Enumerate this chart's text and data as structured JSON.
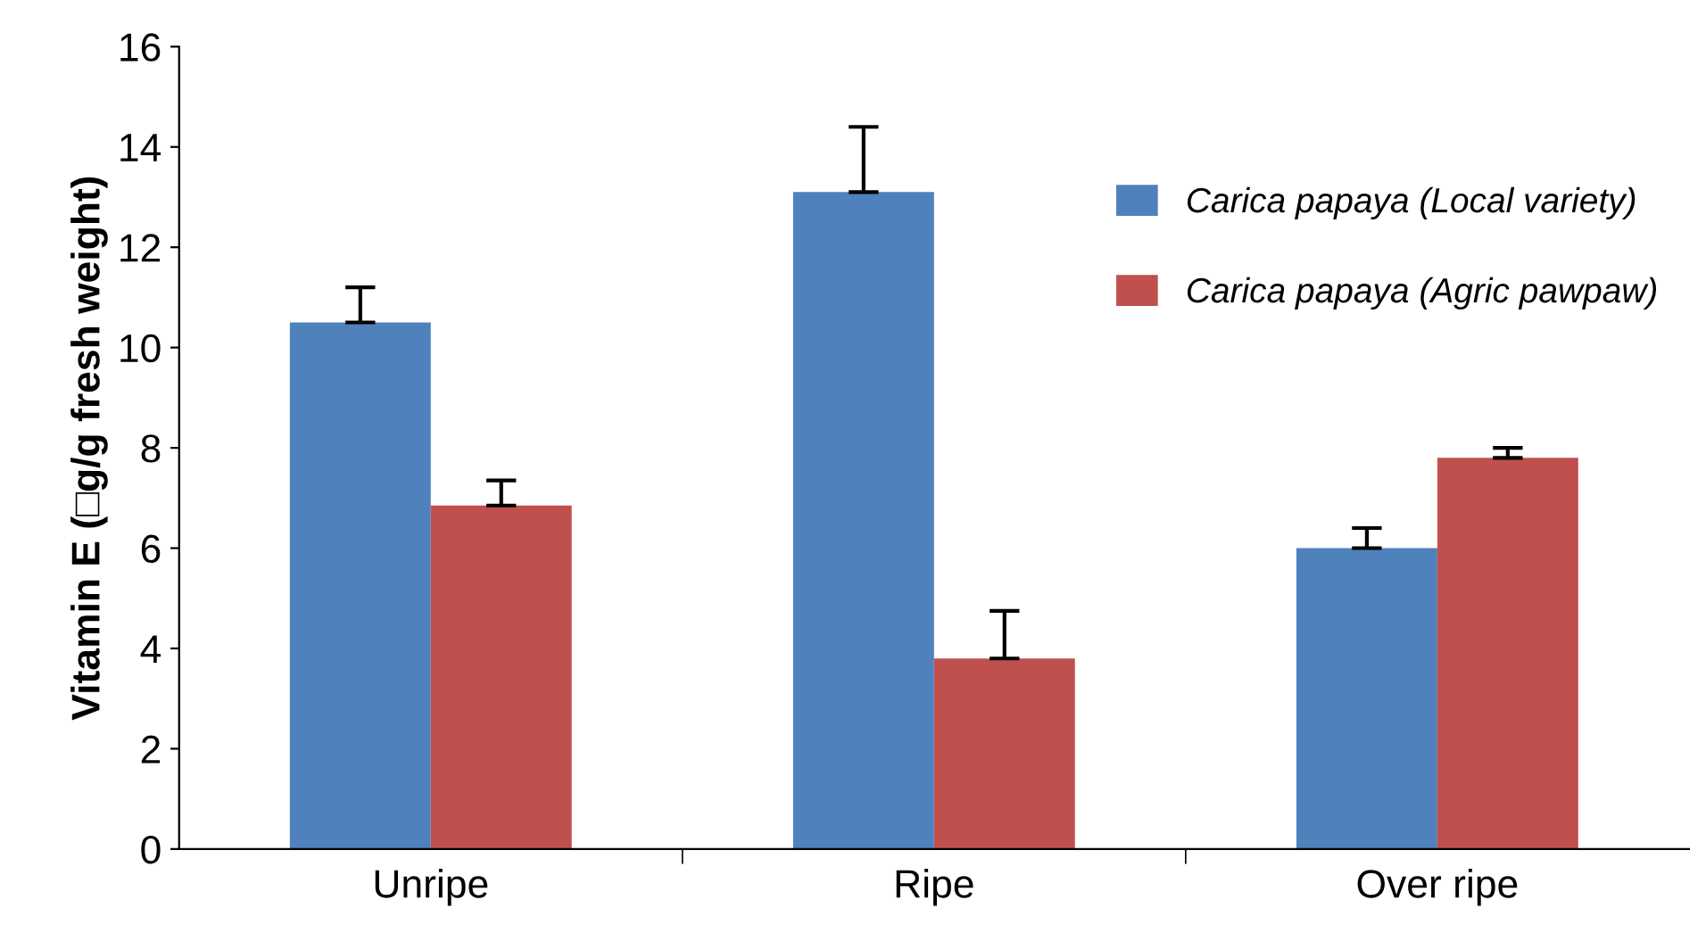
{
  "chart_data": {
    "type": "bar",
    "ylabel": "Vitamin E (□g/g fresh weight)",
    "categories": [
      "Unripe",
      "Ripe",
      "Over ripe"
    ],
    "series": [
      {
        "name": "Carica papaya (Local variety)",
        "color": "#4f81bd",
        "values": [
          10.5,
          13.1,
          6.0
        ],
        "errors": [
          0.7,
          1.3,
          0.4
        ]
      },
      {
        "name": "Carica papaya (Agric pawpaw)",
        "color": "#c0504d",
        "values": [
          6.85,
          3.8,
          7.8
        ],
        "errors": [
          0.5,
          0.95,
          0.2
        ]
      }
    ],
    "ylim": [
      0,
      16
    ],
    "yticks": [
      0,
      2,
      4,
      6,
      8,
      10,
      12,
      14,
      16
    ],
    "grid": false,
    "legend": "right"
  }
}
